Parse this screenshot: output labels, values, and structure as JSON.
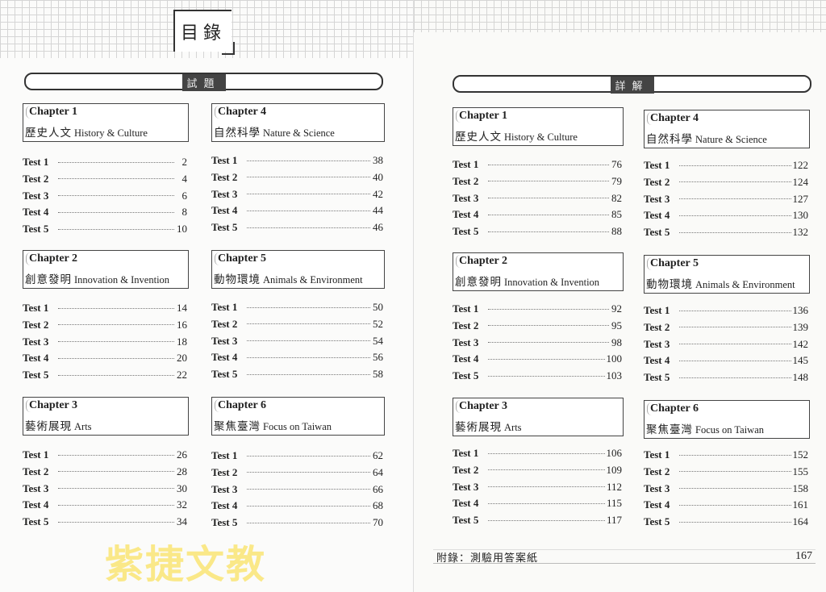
{
  "left_page": {
    "title": "目錄",
    "section": "試題",
    "chapters": [
      {
        "label": "Chapter 1",
        "zh": "歷史人文",
        "en": "History & Culture",
        "tests": [
          [
            "Test 1",
            "2"
          ],
          [
            "Test 2",
            "4"
          ],
          [
            "Test 3",
            "6"
          ],
          [
            "Test 4",
            "8"
          ],
          [
            "Test 5",
            "10"
          ]
        ]
      },
      {
        "label": "Chapter 2",
        "zh": "創意發明",
        "en": "Innovation & Invention",
        "tests": [
          [
            "Test 1",
            "14"
          ],
          [
            "Test 2",
            "16"
          ],
          [
            "Test 3",
            "18"
          ],
          [
            "Test 4",
            "20"
          ],
          [
            "Test 5",
            "22"
          ]
        ]
      },
      {
        "label": "Chapter 3",
        "zh": "藝術展現",
        "en": "Arts",
        "tests": [
          [
            "Test 1",
            "26"
          ],
          [
            "Test 2",
            "28"
          ],
          [
            "Test 3",
            "30"
          ],
          [
            "Test 4",
            "32"
          ],
          [
            "Test 5",
            "34"
          ]
        ]
      },
      {
        "label": "Chapter 4",
        "zh": "自然科學",
        "en": "Nature & Science",
        "tests": [
          [
            "Test 1",
            "38"
          ],
          [
            "Test 2",
            "40"
          ],
          [
            "Test 3",
            "42"
          ],
          [
            "Test 4",
            "44"
          ],
          [
            "Test 5",
            "46"
          ]
        ]
      },
      {
        "label": "Chapter 5",
        "zh": "動物環境",
        "en": "Animals & Environment",
        "tests": [
          [
            "Test 1",
            "50"
          ],
          [
            "Test 2",
            "52"
          ],
          [
            "Test 3",
            "54"
          ],
          [
            "Test 4",
            "56"
          ],
          [
            "Test 5",
            "58"
          ]
        ]
      },
      {
        "label": "Chapter 6",
        "zh": "聚焦臺灣",
        "en": "Focus on Taiwan",
        "tests": [
          [
            "Test 1",
            "62"
          ],
          [
            "Test 2",
            "64"
          ],
          [
            "Test 3",
            "66"
          ],
          [
            "Test 4",
            "68"
          ],
          [
            "Test 5",
            "70"
          ]
        ]
      }
    ]
  },
  "right_page": {
    "section": "詳解",
    "chapters": [
      {
        "label": "Chapter 1",
        "zh": "歷史人文",
        "en": "History & Culture",
        "tests": [
          [
            "Test 1",
            "76"
          ],
          [
            "Test 2",
            "79"
          ],
          [
            "Test 3",
            "82"
          ],
          [
            "Test 4",
            "85"
          ],
          [
            "Test 5",
            "88"
          ]
        ]
      },
      {
        "label": "Chapter 2",
        "zh": "創意發明",
        "en": "Innovation & Invention",
        "tests": [
          [
            "Test 1",
            "92"
          ],
          [
            "Test 2",
            "95"
          ],
          [
            "Test 3",
            "98"
          ],
          [
            "Test 4",
            "100"
          ],
          [
            "Test 5",
            "103"
          ]
        ]
      },
      {
        "label": "Chapter 3",
        "zh": "藝術展現",
        "en": "Arts",
        "tests": [
          [
            "Test 1",
            "106"
          ],
          [
            "Test 2",
            "109"
          ],
          [
            "Test 3",
            "112"
          ],
          [
            "Test 4",
            "115"
          ],
          [
            "Test 5",
            "117"
          ]
        ]
      },
      {
        "label": "Chapter 4",
        "zh": "自然科學",
        "en": "Nature & Science",
        "tests": [
          [
            "Test 1",
            "122"
          ],
          [
            "Test 2",
            "124"
          ],
          [
            "Test 3",
            "127"
          ],
          [
            "Test 4",
            "130"
          ],
          [
            "Test 5",
            "132"
          ]
        ]
      },
      {
        "label": "Chapter 5",
        "zh": "動物環境",
        "en": "Animals & Environment",
        "tests": [
          [
            "Test 1",
            "136"
          ],
          [
            "Test 2",
            "139"
          ],
          [
            "Test 3",
            "142"
          ],
          [
            "Test 4",
            "145"
          ],
          [
            "Test 5",
            "148"
          ]
        ]
      },
      {
        "label": "Chapter 6",
        "zh": "聚焦臺灣",
        "en": "Focus on Taiwan",
        "tests": [
          [
            "Test 1",
            "152"
          ],
          [
            "Test 2",
            "155"
          ],
          [
            "Test 3",
            "158"
          ],
          [
            "Test 4",
            "161"
          ],
          [
            "Test 5",
            "164"
          ]
        ]
      }
    ],
    "appendix": {
      "label": "附錄：測驗用答案紙",
      "page": "167"
    }
  },
  "watermark": "紫捷文教",
  "colors": {
    "watermark": "#f5d530",
    "ink": "#222222"
  }
}
